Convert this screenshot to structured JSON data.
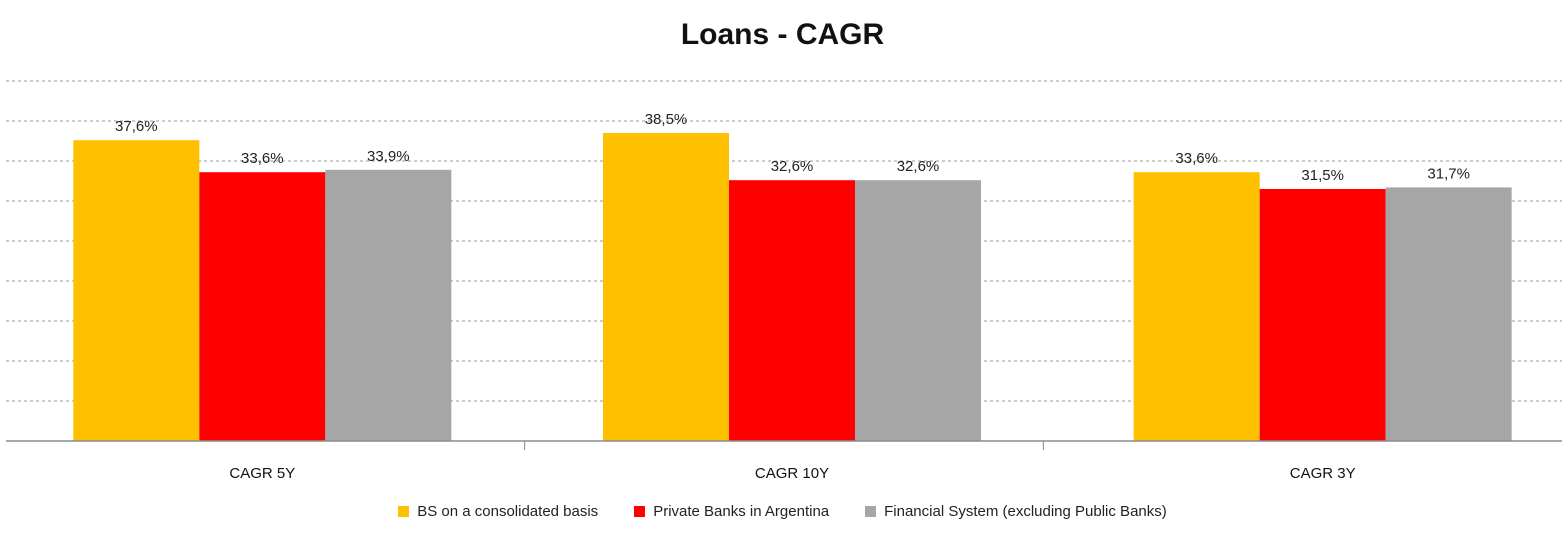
{
  "chart_data": {
    "type": "bar",
    "title": "Loans - CAGR",
    "categories": [
      "CAGR 5Y",
      "CAGR 10Y",
      "CAGR 3Y"
    ],
    "series": [
      {
        "name": "BS on a consolidated basis",
        "values": [
          37.6,
          38.5,
          33.6
        ],
        "labels": [
          "37,6%",
          "38,5%",
          "33,6%"
        ],
        "color": "#FFC000"
      },
      {
        "name": "Private Banks in Argentina",
        "values": [
          33.6,
          32.6,
          31.5
        ],
        "labels": [
          "33,6%",
          "32,6%",
          "31,5%"
        ],
        "color": "#FF0000"
      },
      {
        "name": "Financial System (excluding Public Banks)",
        "values": [
          33.9,
          32.6,
          31.7
        ],
        "labels": [
          "33,9%",
          "32,6%",
          "31,7%"
        ],
        "color": "#A6A6A6"
      }
    ],
    "ylim": [
      0,
      45
    ],
    "grid": true,
    "gridline_style": "dashed",
    "legend_position": "bottom",
    "y_tick_labels_visible": false
  }
}
